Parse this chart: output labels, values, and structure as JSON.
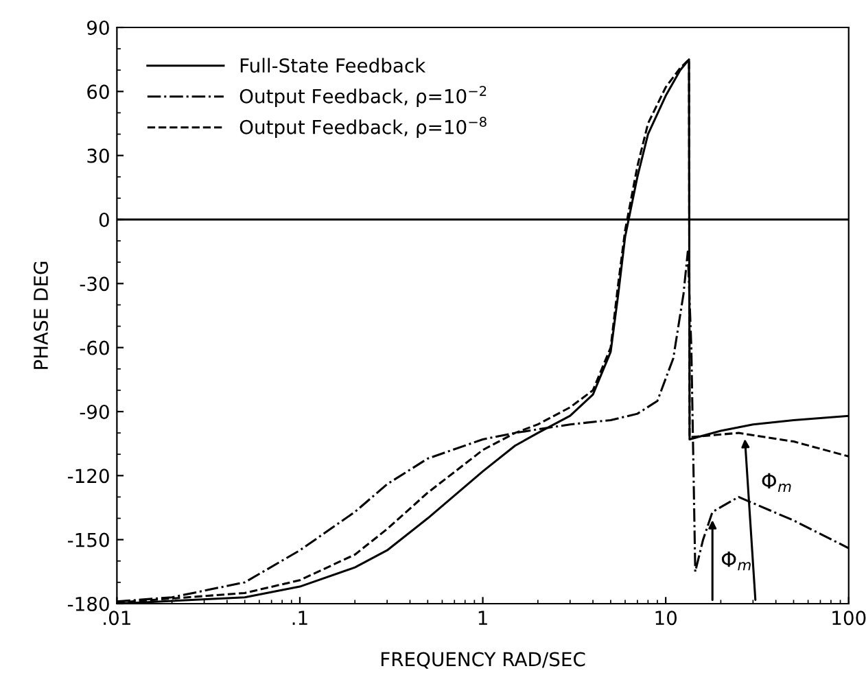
{
  "chart_data": {
    "type": "line",
    "xlabel": "FREQUENCY RAD/SEC",
    "ylabel": "PHASE DEG",
    "log": "x",
    "xlim": [
      0.01,
      100
    ],
    "xticks": [
      {
        "value": 0.01,
        "label": ".01"
      },
      {
        "value": 0.1,
        "label": ".1"
      },
      1,
      10,
      100
    ],
    "ylim": [
      -180,
      90
    ],
    "yticks": [
      -180,
      -150,
      -120,
      -90,
      -60,
      -30,
      0,
      30,
      60,
      90
    ],
    "legend": "top left",
    "grid": false,
    "ref_lines": [
      {
        "axis": "y",
        "value": 0,
        "color": "#000000",
        "line_style": "solid"
      }
    ],
    "series": [
      {
        "name": "Full-State Feedback",
        "color": "#000000",
        "line_style": "solid",
        "x": [
          0.01,
          0.05,
          0.1,
          0.2,
          0.3,
          0.5,
          1,
          1.5,
          2,
          3,
          4,
          5,
          5.5,
          6,
          7,
          8,
          10,
          12,
          13.4,
          13.5,
          20,
          30,
          50,
          100
        ],
        "values": [
          -180,
          -177,
          -172,
          -163,
          -155,
          -140,
          -118,
          -106,
          -100,
          -92,
          -82,
          -62,
          -35,
          -8,
          20,
          40,
          58,
          70,
          75,
          -103,
          -99,
          -96,
          -94,
          -92
        ]
      },
      {
        "name": "Output Feedback, ρ=10$^{−2}$",
        "color": "#000000",
        "line_style": "dashdot",
        "x": [
          0.01,
          0.02,
          0.05,
          0.1,
          0.2,
          0.3,
          0.5,
          1,
          1.5,
          3,
          5,
          7,
          9,
          11,
          12.5,
          13.2,
          13.8,
          14.2,
          14.5,
          16,
          18,
          25,
          50,
          100
        ],
        "values": [
          -179,
          -177,
          -170,
          -155,
          -137,
          -124,
          -112,
          -103,
          -100,
          -96,
          -94,
          -91,
          -85,
          -65,
          -35,
          -15,
          -60,
          -120,
          -165,
          -150,
          -137,
          -130,
          -141,
          -154
        ]
      },
      {
        "name": "Output Feedback, ρ=10$^{−8}$",
        "color": "#000000",
        "line_style": "dashed",
        "x": [
          0.01,
          0.05,
          0.1,
          0.2,
          0.3,
          0.5,
          1,
          1.5,
          2,
          3,
          4,
          5,
          5.5,
          6,
          7,
          8,
          10,
          12,
          13.4,
          13.5,
          25,
          50,
          100
        ],
        "values": [
          -179.5,
          -175,
          -169,
          -157,
          -145,
          -128,
          -108,
          -100,
          -96,
          -88,
          -80,
          -60,
          -30,
          -5,
          25,
          45,
          62,
          71,
          75,
          -102,
          -100,
          -104,
          -111
        ]
      }
    ],
    "annotations": [
      "Φ$_{m}$",
      "Φ$_{m}$"
    ]
  }
}
